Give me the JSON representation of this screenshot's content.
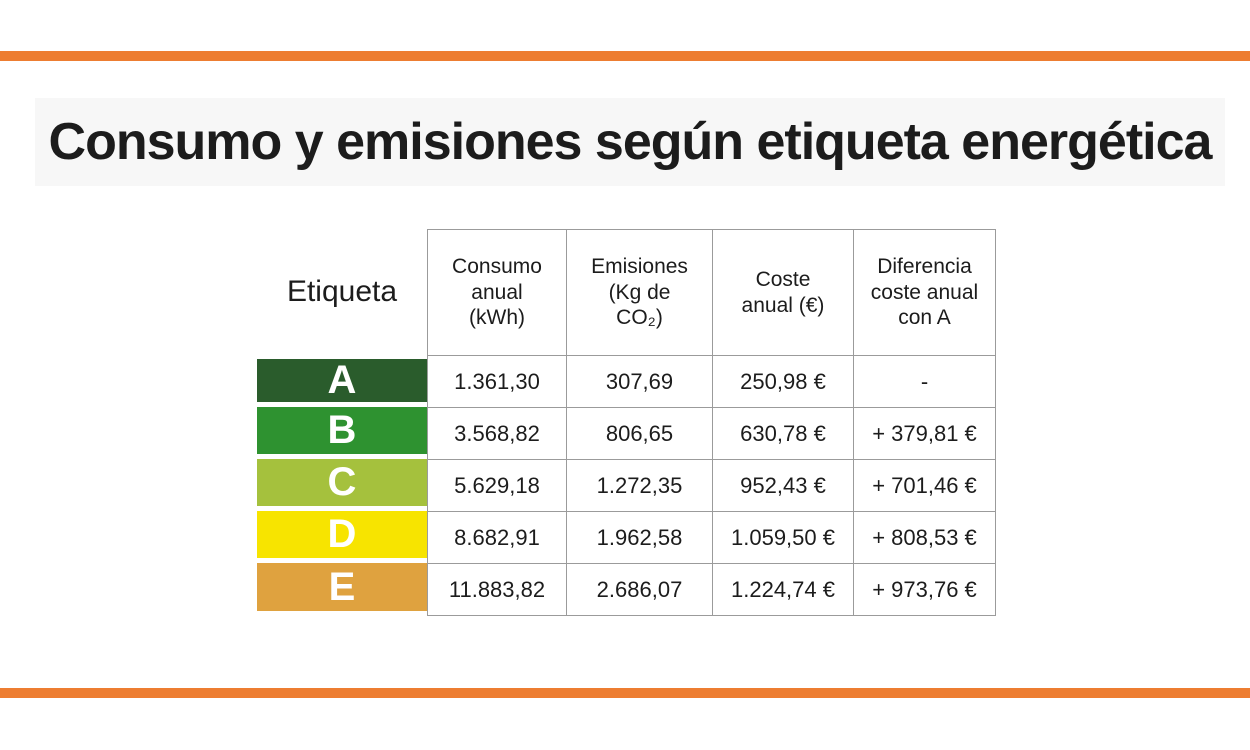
{
  "title": "Consumo y emisiones según etiqueta energética",
  "colors": {
    "accent_bar": "#ED7D31",
    "title_band": "#F7F7F7",
    "grid_border": "#9B9B9B",
    "shaded_cell": "#E5E5E0"
  },
  "table": {
    "corner_label": "Etiqueta",
    "column_headers": [
      "Consumo\nanual\n(kWh)",
      "Emisiones\n(Kg de\nCO₂)",
      "Coste\nanual (€)",
      "Diferencia\ncoste anual\ncon A"
    ],
    "rows": [
      {
        "label": "A",
        "color": "#2A5C2C",
        "consumo": "1.361,30",
        "emisiones": "307,69",
        "coste": "250,98 €",
        "diferencia": "-"
      },
      {
        "label": "B",
        "color": "#2E9230",
        "consumo": "3.568,82",
        "emisiones": "806,65",
        "coste": "630,78 €",
        "diferencia": "+ 379,81 €"
      },
      {
        "label": "C",
        "color": "#A5C13D",
        "consumo": "5.629,18",
        "emisiones": "1.272,35",
        "coste": "952,43 €",
        "diferencia": "+ 701,46 €"
      },
      {
        "label": "D",
        "color": "#F7E400",
        "consumo": "8.682,91",
        "emisiones": "1.962,58",
        "coste": "1.059,50 €",
        "diferencia": "+ 808,53 €"
      },
      {
        "label": "E",
        "color": "#DFA23F",
        "consumo": "11.883,82",
        "emisiones": "2.686,07",
        "coste": "1.224,74 €",
        "diferencia": "+ 973,76 €"
      }
    ]
  },
  "chart_data": {
    "type": "table",
    "title": "Consumo y emisiones según etiqueta energética",
    "columns": [
      "Etiqueta",
      "Consumo anual (kWh)",
      "Emisiones (Kg de CO2)",
      "Coste anual (€)",
      "Diferencia coste anual con A (€)"
    ],
    "rows": [
      [
        "A",
        1361.3,
        307.69,
        250.98,
        null
      ],
      [
        "B",
        3568.82,
        806.65,
        630.78,
        379.81
      ],
      [
        "C",
        5629.18,
        1272.35,
        952.43,
        701.46
      ],
      [
        "D",
        8682.91,
        1962.58,
        1059.5,
        808.53
      ],
      [
        "E",
        11883.82,
        2686.07,
        1224.74,
        973.76
      ]
    ],
    "row_colors": [
      "#2A5C2C",
      "#2E9230",
      "#A5C13D",
      "#F7E400",
      "#DFA23F"
    ]
  }
}
